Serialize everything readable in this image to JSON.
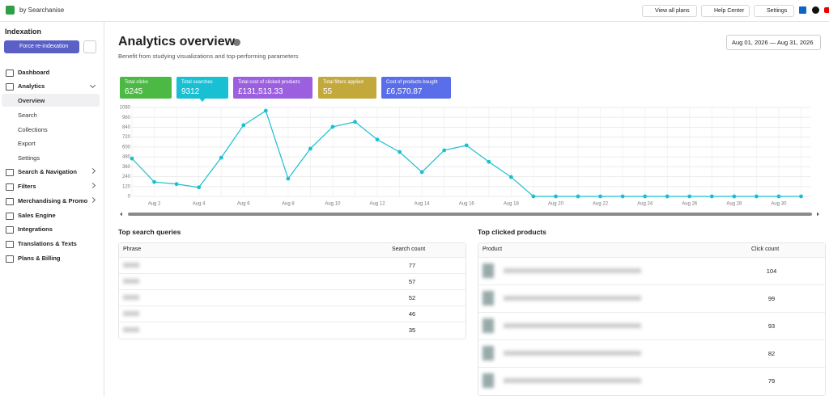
{
  "header": {
    "brand": "by Searchanise",
    "buttons": [
      "View all plans",
      "Help Center",
      "Settings"
    ]
  },
  "sidebar": {
    "section": "Indexation",
    "reindex_button": "Force re-indexation",
    "nav": [
      {
        "label": "Dashboard"
      },
      {
        "label": "Analytics",
        "children": [
          "Overview",
          "Search",
          "Collections",
          "Export",
          "Settings"
        ]
      },
      {
        "label": "Search & Navigation"
      },
      {
        "label": "Filters"
      },
      {
        "label": "Merchandising & Promo"
      },
      {
        "label": "Sales Engine"
      },
      {
        "label": "Integrations"
      },
      {
        "label": "Translations & Texts"
      },
      {
        "label": "Plans & Billing"
      }
    ]
  },
  "page": {
    "title": "Analytics overview",
    "subtitle": "Benefit from studying visualizations and top-performing parameters",
    "date_range": "Aug 01, 2026 — Aug 31, 2026"
  },
  "metrics": [
    {
      "label": "Total clicks",
      "value": 6245,
      "color": "#4cb944"
    },
    {
      "label": "Total searches",
      "value": 9312,
      "color": "#19bfd3"
    },
    {
      "label": "Total cost of clicked products",
      "value": "£131,513.33",
      "color": "#9b5fe0"
    },
    {
      "label": "Total filters applied",
      "value": 55,
      "color": "#c3a83b"
    },
    {
      "label": "Cost of products bought",
      "value": "£6,570.87",
      "color": "#5b6ee9"
    }
  ],
  "chart_data": {
    "type": "line",
    "color": "#1cbfcf",
    "grid": true,
    "categories": [
      null,
      "Aug 2",
      null,
      "Aug 4",
      null,
      "Aug 6",
      null,
      "Aug 8",
      null,
      "Aug 10",
      null,
      "Aug 12",
      null,
      "Aug 14",
      null,
      "Aug 16",
      null,
      "Aug 18",
      null,
      "Aug 20",
      null,
      "Aug 22",
      null,
      "Aug 24",
      null,
      "Aug 26",
      null,
      "Aug 28",
      null,
      "Aug 30",
      null
    ],
    "values": [
      460,
      175,
      150,
      110,
      470,
      865,
      1040,
      215,
      580,
      845,
      905,
      690,
      540,
      295,
      560,
      620,
      420,
      235,
      0,
      0,
      0,
      0,
      0,
      0,
      0,
      0,
      0,
      0,
      0,
      0,
      0
    ],
    "ylim": [
      0,
      1080
    ],
    "yticks": [
      0,
      120,
      240,
      360,
      480,
      600,
      720,
      840,
      960,
      1080
    ]
  },
  "top_search_queries": {
    "title": "Top search queries",
    "columns": [
      "Phrase",
      "Search count"
    ],
    "counts": [
      77,
      57,
      52,
      46,
      35
    ]
  },
  "top_clicked_products": {
    "title": "Top clicked products",
    "columns": [
      "Product",
      "Click count"
    ],
    "counts": [
      104,
      99,
      93,
      82,
      79
    ]
  }
}
